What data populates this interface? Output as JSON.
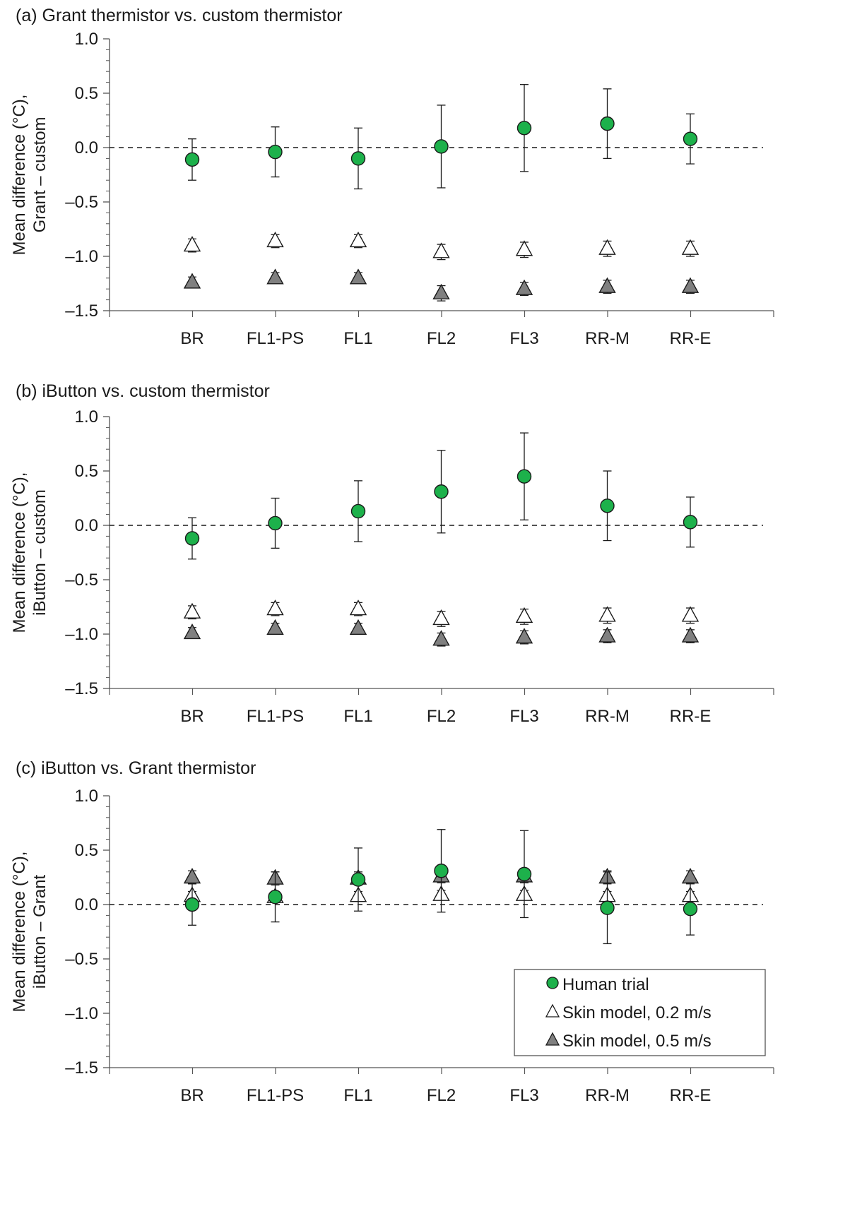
{
  "legend": {
    "position": "bottom-right of panel (c)",
    "items": [
      {
        "label": "Human trial",
        "marker": "circle-icon",
        "color": "#1db14b"
      },
      {
        "label": "Skin model, 0.2 m/s",
        "marker": "open-triangle-icon",
        "color": "#ffffff"
      },
      {
        "label": "Skin model, 0.5 m/s",
        "marker": "filled-triangle-icon",
        "color": "#808080"
      }
    ]
  },
  "colors": {
    "human": "#1db14b",
    "model_fast": "#808080",
    "model_slow": "#ffffff",
    "axis": "#555555"
  },
  "chart_data": [
    {
      "type": "scatter",
      "title": "(a) Grant thermistor vs. custom thermistor",
      "ylabel_lines": [
        "Mean difference (°C),",
        "Grant – custom"
      ],
      "xlabel": "",
      "ylim": [
        -1.5,
        1.0
      ],
      "yticks": [
        1.0,
        0.5,
        0.0,
        -0.5,
        -1.0,
        -1.5
      ],
      "ytick_labels": [
        "1.0",
        "0.5",
        "0.0",
        "–0.5",
        "–1.0",
        "–1.5"
      ],
      "reference_line": 0.0,
      "categories": [
        "BR",
        "FL1-PS",
        "FL1",
        "FL2",
        "FL3",
        "RR-M",
        "RR-E"
      ],
      "series": [
        {
          "name": "Human trial",
          "marker": "circle",
          "values": [
            -0.11,
            -0.04,
            -0.1,
            0.01,
            0.18,
            0.22,
            0.08
          ],
          "err": [
            0.19,
            0.23,
            0.28,
            0.38,
            0.4,
            0.32,
            0.23
          ]
        },
        {
          "name": "Skin model, 0.2 m/s",
          "marker": "open-triangle",
          "values": [
            -0.9,
            -0.86,
            -0.86,
            -0.96,
            -0.94,
            -0.93,
            -0.93
          ],
          "err": [
            0.06,
            0.06,
            0.06,
            0.07,
            0.07,
            0.07,
            0.07
          ]
        },
        {
          "name": "Skin model, 0.5 m/s",
          "marker": "filled-triangle",
          "values": [
            -1.24,
            -1.2,
            -1.2,
            -1.34,
            -1.3,
            -1.28,
            -1.28
          ],
          "err": [
            0.05,
            0.05,
            0.05,
            0.07,
            0.06,
            0.06,
            0.06
          ]
        }
      ]
    },
    {
      "type": "scatter",
      "title": "(b) iButton vs. custom thermistor",
      "ylabel_lines": [
        "Mean difference (°C),",
        "iButton – custom"
      ],
      "xlabel": "",
      "ylim": [
        -1.5,
        1.0
      ],
      "yticks": [
        1.0,
        0.5,
        0.0,
        -0.5,
        -1.0,
        -1.5
      ],
      "ytick_labels": [
        "1.0",
        "0.5",
        "0.0",
        "–0.5",
        "–1.0",
        "–1.5"
      ],
      "reference_line": 0.0,
      "categories": [
        "BR",
        "FL1-PS",
        "FL1",
        "FL2",
        "FL3",
        "RR-M",
        "RR-E"
      ],
      "series": [
        {
          "name": "Human trial",
          "marker": "circle",
          "values": [
            -0.12,
            0.02,
            0.13,
            0.31,
            0.45,
            0.18,
            0.03
          ],
          "err": [
            0.19,
            0.23,
            0.28,
            0.38,
            0.4,
            0.32,
            0.23
          ]
        },
        {
          "name": "Skin model, 0.2 m/s",
          "marker": "open-triangle",
          "values": [
            -0.8,
            -0.77,
            -0.77,
            -0.86,
            -0.84,
            -0.83,
            -0.83
          ],
          "err": [
            0.06,
            0.06,
            0.06,
            0.07,
            0.07,
            0.07,
            0.07
          ]
        },
        {
          "name": "Skin model, 0.5 m/s",
          "marker": "filled-triangle",
          "values": [
            -0.99,
            -0.95,
            -0.95,
            -1.05,
            -1.03,
            -1.02,
            -1.02
          ],
          "err": [
            0.05,
            0.05,
            0.05,
            0.06,
            0.06,
            0.06,
            0.06
          ]
        }
      ]
    },
    {
      "type": "scatter",
      "title": "(c) iButton vs. Grant thermistor",
      "ylabel_lines": [
        "Mean difference (°C),",
        "iButton – Grant"
      ],
      "xlabel": "",
      "ylim": [
        -1.5,
        1.0
      ],
      "yticks": [
        1.0,
        0.5,
        0.0,
        -0.5,
        -1.0,
        -1.5
      ],
      "ytick_labels": [
        "1.0",
        "0.5",
        "0.0",
        "–0.5",
        "–1.0",
        "–1.5"
      ],
      "reference_line": 0.0,
      "categories": [
        "BR",
        "FL1-PS",
        "FL1",
        "FL2",
        "FL3",
        "RR-M",
        "RR-E"
      ],
      "series": [
        {
          "name": "Human trial",
          "marker": "circle",
          "values": [
            0.0,
            0.07,
            0.23,
            0.31,
            0.28,
            -0.03,
            -0.04
          ],
          "err": [
            0.19,
            0.23,
            0.29,
            0.38,
            0.4,
            0.33,
            0.24
          ]
        },
        {
          "name": "Skin model, 0.2 m/s",
          "marker": "open-triangle",
          "values": [
            0.08,
            0.07,
            0.08,
            0.09,
            0.09,
            0.08,
            0.08
          ],
          "err": [
            0.04,
            0.04,
            0.04,
            0.04,
            0.04,
            0.04,
            0.04
          ]
        },
        {
          "name": "Skin model, 0.5 m/s",
          "marker": "filled-triangle",
          "values": [
            0.25,
            0.24,
            0.24,
            0.26,
            0.26,
            0.25,
            0.25
          ],
          "err": [
            0.06,
            0.06,
            0.06,
            0.06,
            0.06,
            0.06,
            0.06
          ]
        }
      ]
    }
  ]
}
